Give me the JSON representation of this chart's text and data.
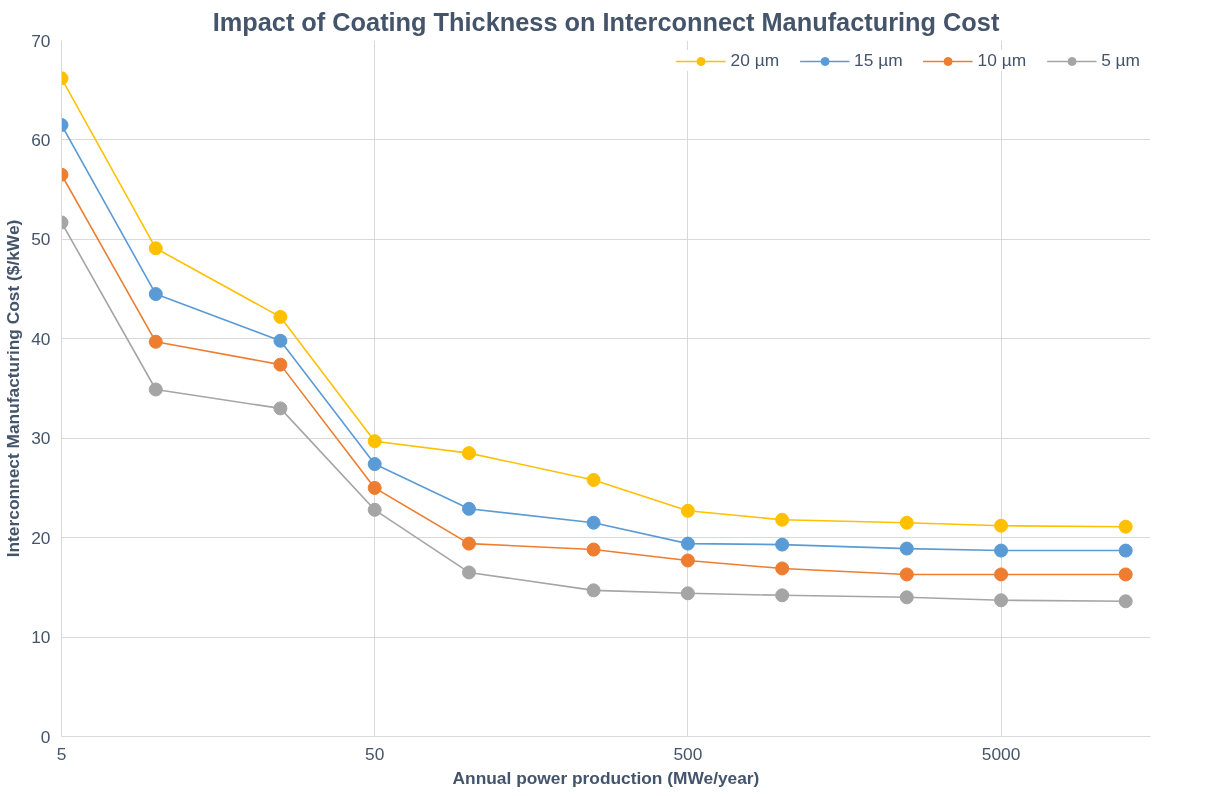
{
  "chart_data": {
    "type": "line",
    "title": "Impact of Coating Thickness on Interconnect Manufacturing Cost",
    "xlabel": "Annual power production (MWe/year)",
    "ylabel": "Interconnect Manufacturing Cost ($/kWe)",
    "x": [
      5,
      10,
      25,
      50,
      100,
      250,
      500,
      1000,
      2500,
      5000,
      12500
    ],
    "series": [
      {
        "name": "20 µm",
        "color": "#ffc000",
        "values": [
          66.2,
          49.1,
          42.2,
          29.7,
          28.5,
          25.8,
          22.7,
          21.8,
          21.5,
          21.2,
          21.1
        ]
      },
      {
        "name": "15 µm",
        "color": "#5b9bd5",
        "values": [
          61.5,
          44.5,
          39.8,
          27.4,
          22.9,
          21.5,
          19.4,
          19.3,
          18.9,
          18.7,
          18.7
        ]
      },
      {
        "name": "10 µm",
        "color": "#ed7d31",
        "values": [
          56.5,
          39.7,
          37.4,
          25.0,
          19.4,
          18.8,
          17.7,
          16.9,
          16.3,
          16.3,
          16.3
        ]
      },
      {
        "name": "5 µm",
        "color": "#a5a5a5",
        "values": [
          51.7,
          34.9,
          33.0,
          22.8,
          16.5,
          14.7,
          14.4,
          14.2,
          14.0,
          13.7,
          13.6
        ]
      }
    ],
    "log": "x",
    "xlim": [
      5,
      15000
    ],
    "xticks": [
      5,
      50,
      500,
      5000
    ],
    "ylim": [
      0,
      70
    ],
    "yticks": [
      0,
      10,
      20,
      30,
      40,
      50,
      60,
      70
    ],
    "grid": true,
    "legend": "top right",
    "marker": "circle",
    "line_style": "solid"
  }
}
